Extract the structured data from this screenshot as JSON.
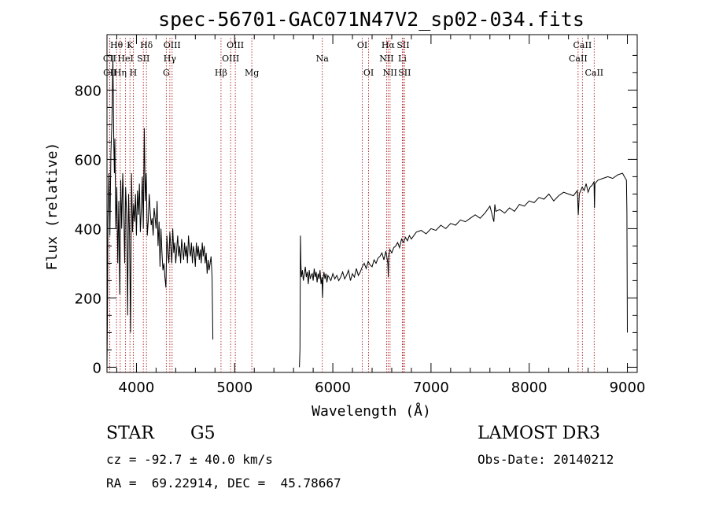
{
  "chart_data": {
    "type": "line",
    "title": "spec-56701-GAC071N47V2_sp02-034.fits",
    "xlabel": "Wavelength (Å)",
    "ylabel": "Flux (relative)",
    "xlim": [
      3700,
      9100
    ],
    "ylim": [
      -15,
      960
    ],
    "xticks": [
      4000,
      5000,
      6000,
      7000,
      8000,
      9000
    ],
    "yticks": [
      0,
      200,
      400,
      600,
      800
    ],
    "series": [
      {
        "name": "flux",
        "segments": [
          {
            "x": [
              3700,
              3705,
              3710,
              3715,
              3720,
              3725,
              3730,
              3740,
              3750,
              3760,
              3770,
              3775,
              3780,
              3790,
              3800,
              3810,
              3820,
              3830,
              3840,
              3850,
              3860,
              3870,
              3880,
              3890,
              3900,
              3910,
              3920,
              3930,
              3940,
              3950,
              3960,
              3970,
              3980,
              3990,
              4000,
              4010,
              4020,
              4030,
              4040,
              4050,
              4060,
              4070,
              4080,
              4090,
              4100,
              4110,
              4120,
              4130,
              4140,
              4150,
              4160,
              4170,
              4180,
              4190,
              4200,
              4210,
              4220,
              4230,
              4240,
              4250,
              4260,
              4270,
              4280,
              4290,
              4300,
              4310,
              4320,
              4330,
              4340,
              4350,
              4360,
              4370,
              4380,
              4390,
              4400,
              4410,
              4420,
              4430,
              4440,
              4450,
              4460,
              4470,
              4480,
              4490,
              4500,
              4510,
              4520,
              4530,
              4540,
              4550,
              4560,
              4570,
              4580,
              4590,
              4600,
              4610,
              4620,
              4630,
              4640,
              4650,
              4660,
              4670,
              4680,
              4690,
              4700,
              4710,
              4720,
              4730,
              4740,
              4750,
              4760,
              4770,
              4778
            ],
            "y": [
              0,
              150,
              430,
              500,
              560,
              480,
              380,
              620,
              700,
              900,
              640,
              560,
              660,
              400,
              520,
              300,
              480,
              210,
              540,
              400,
              560,
              470,
              300,
              520,
              440,
              150,
              500,
              380,
              100,
              560,
              390,
              470,
              420,
              500,
              380,
              510,
              440,
              530,
              390,
              460,
              550,
              400,
              690,
              480,
              560,
              380,
              420,
              500,
              450,
              410,
              430,
              380,
              460,
              430,
              400,
              480,
              350,
              420,
              290,
              400,
              330,
              280,
              300,
              260,
              230,
              380,
              330,
              300,
              390,
              350,
              300,
              400,
              330,
              360,
              300,
              340,
              380,
              320,
              350,
              300,
              370,
              340,
              310,
              360,
              320,
              350,
              300,
              380,
              340,
              320,
              360,
              300,
              350,
              330,
              290,
              360,
              320,
              350,
              310,
              340,
              300,
              360,
              320,
              350,
              300,
              330,
              270,
              310,
              280,
              300,
              320,
              260,
              80
            ]
          },
          {
            "x": [
              5660,
              5665,
              5670,
              5675,
              5680,
              5690,
              5700,
              5710,
              5720,
              5730,
              5740,
              5750,
              5760,
              5770,
              5780,
              5790,
              5800,
              5810,
              5820,
              5830,
              5840,
              5850,
              5860,
              5870,
              5880,
              5890,
              5895,
              5900,
              5910,
              5920,
              5930,
              5940,
              5950,
              5960,
              5980,
              6000,
              6020,
              6040,
              6060,
              6080,
              6100,
              6120,
              6140,
              6160,
              6180,
              6200,
              6220,
              6240,
              6260,
              6280,
              6300,
              6320,
              6340,
              6360,
              6380,
              6400,
              6420,
              6440,
              6460,
              6480,
              6500,
              6520,
              6540,
              6560,
              6565,
              6570,
              6580,
              6600,
              6620,
              6640,
              6660,
              6680,
              6700,
              6720,
              6740,
              6760,
              6780,
              6800,
              6850,
              6900,
              6950,
              7000,
              7050,
              7100,
              7150,
              7200,
              7250,
              7300,
              7350,
              7400,
              7450,
              7500,
              7550,
              7600,
              7640,
              7650,
              7660,
              7700,
              7750,
              7800,
              7850,
              7900,
              7950,
              8000,
              8050,
              8100,
              8150,
              8200,
              8250,
              8300,
              8350,
              8400,
              8450,
              8490,
              8500,
              8510,
              8540,
              8560,
              8580,
              8600,
              8620,
              8640,
              8660,
              8665,
              8670,
              8700,
              8750,
              8800,
              8850,
              8900,
              8950,
              8980,
              8990,
              8995,
              9000
            ],
            "y": [
              0,
              50,
              380,
              300,
              260,
              280,
              250,
              270,
              290,
              260,
              275,
              240,
              280,
              255,
              265,
              270,
              250,
              285,
              260,
              275,
              245,
              270,
              255,
              280,
              240,
              260,
              200,
              250,
              275,
              255,
              270,
              245,
              265,
              260,
              250,
              270,
              255,
              265,
              250,
              260,
              275,
              255,
              265,
              280,
              250,
              270,
              260,
              285,
              265,
              275,
              290,
              300,
              285,
              305,
              295,
              290,
              310,
              300,
              315,
              320,
              330,
              310,
              335,
              300,
              260,
              320,
              340,
              330,
              345,
              350,
              360,
              345,
              370,
              360,
              375,
              365,
              380,
              370,
              390,
              395,
              385,
              400,
              395,
              410,
              400,
              415,
              410,
              425,
              420,
              430,
              440,
              430,
              445,
              465,
              420,
              470,
              450,
              455,
              445,
              460,
              450,
              470,
              465,
              480,
              475,
              490,
              485,
              500,
              480,
              495,
              505,
              500,
              495,
              510,
              440,
              500,
              520,
              510,
              530,
              505,
              520,
              525,
              535,
              460,
              530,
              540,
              545,
              550,
              545,
              555,
              560,
              545,
              540,
              450,
              100
            ]
          }
        ]
      }
    ],
    "lines": [
      {
        "label": "Hθ",
        "wave": 3797,
        "row": 1
      },
      {
        "label": "CII",
        "wave": 3727,
        "row": 2
      },
      {
        "label": "CII",
        "wave": 3729,
        "row": 3
      },
      {
        "label": "K",
        "wave": 3934,
        "row": 1
      },
      {
        "label": "HeI",
        "wave": 3889,
        "row": 2
      },
      {
        "label": "Hη",
        "wave": 3835,
        "row": 3
      },
      {
        "label": "SII",
        "wave": 4070,
        "row": 2
      },
      {
        "label": "H",
        "wave": 3968,
        "row": 3
      },
      {
        "label": "Hδ",
        "wave": 4102,
        "row": 1
      },
      {
        "label": "OIII",
        "wave": 4363,
        "row": 1
      },
      {
        "label": "Hγ",
        "wave": 4340,
        "row": 2
      },
      {
        "label": "G",
        "wave": 4304,
        "row": 3
      },
      {
        "label": "Hβ",
        "wave": 4861,
        "row": 3
      },
      {
        "label": "OIII",
        "wave": 5007,
        "row": 1
      },
      {
        "label": "OIII",
        "wave": 4959,
        "row": 2
      },
      {
        "label": "Mg",
        "wave": 5175,
        "row": 3
      },
      {
        "label": "Na",
        "wave": 5893,
        "row": 2
      },
      {
        "label": "OI",
        "wave": 6300,
        "row": 1
      },
      {
        "label": "OI",
        "wave": 6364,
        "row": 3
      },
      {
        "label": "Hα",
        "wave": 6563,
        "row": 1
      },
      {
        "label": "NII",
        "wave": 6548,
        "row": 2
      },
      {
        "label": "NII",
        "wave": 6583,
        "row": 3
      },
      {
        "label": "SII",
        "wave": 6716,
        "row": 1
      },
      {
        "label": "Li",
        "wave": 6708,
        "row": 2
      },
      {
        "label": "SII",
        "wave": 6731,
        "row": 3
      },
      {
        "label": "CaII",
        "wave": 8542,
        "row": 1
      },
      {
        "label": "CaII",
        "wave": 8498,
        "row": 2
      },
      {
        "label": "CaII",
        "wave": 8662,
        "row": 3
      }
    ]
  },
  "info": {
    "class_label": "STAR",
    "subclass": "G5",
    "survey": "LAMOST DR3",
    "cz": "cz = -92.7 ± 40.0 km/s",
    "obs_date": "Obs-Date: 20140212",
    "coords": "RA =  69.22914, DEC =  45.78667"
  }
}
